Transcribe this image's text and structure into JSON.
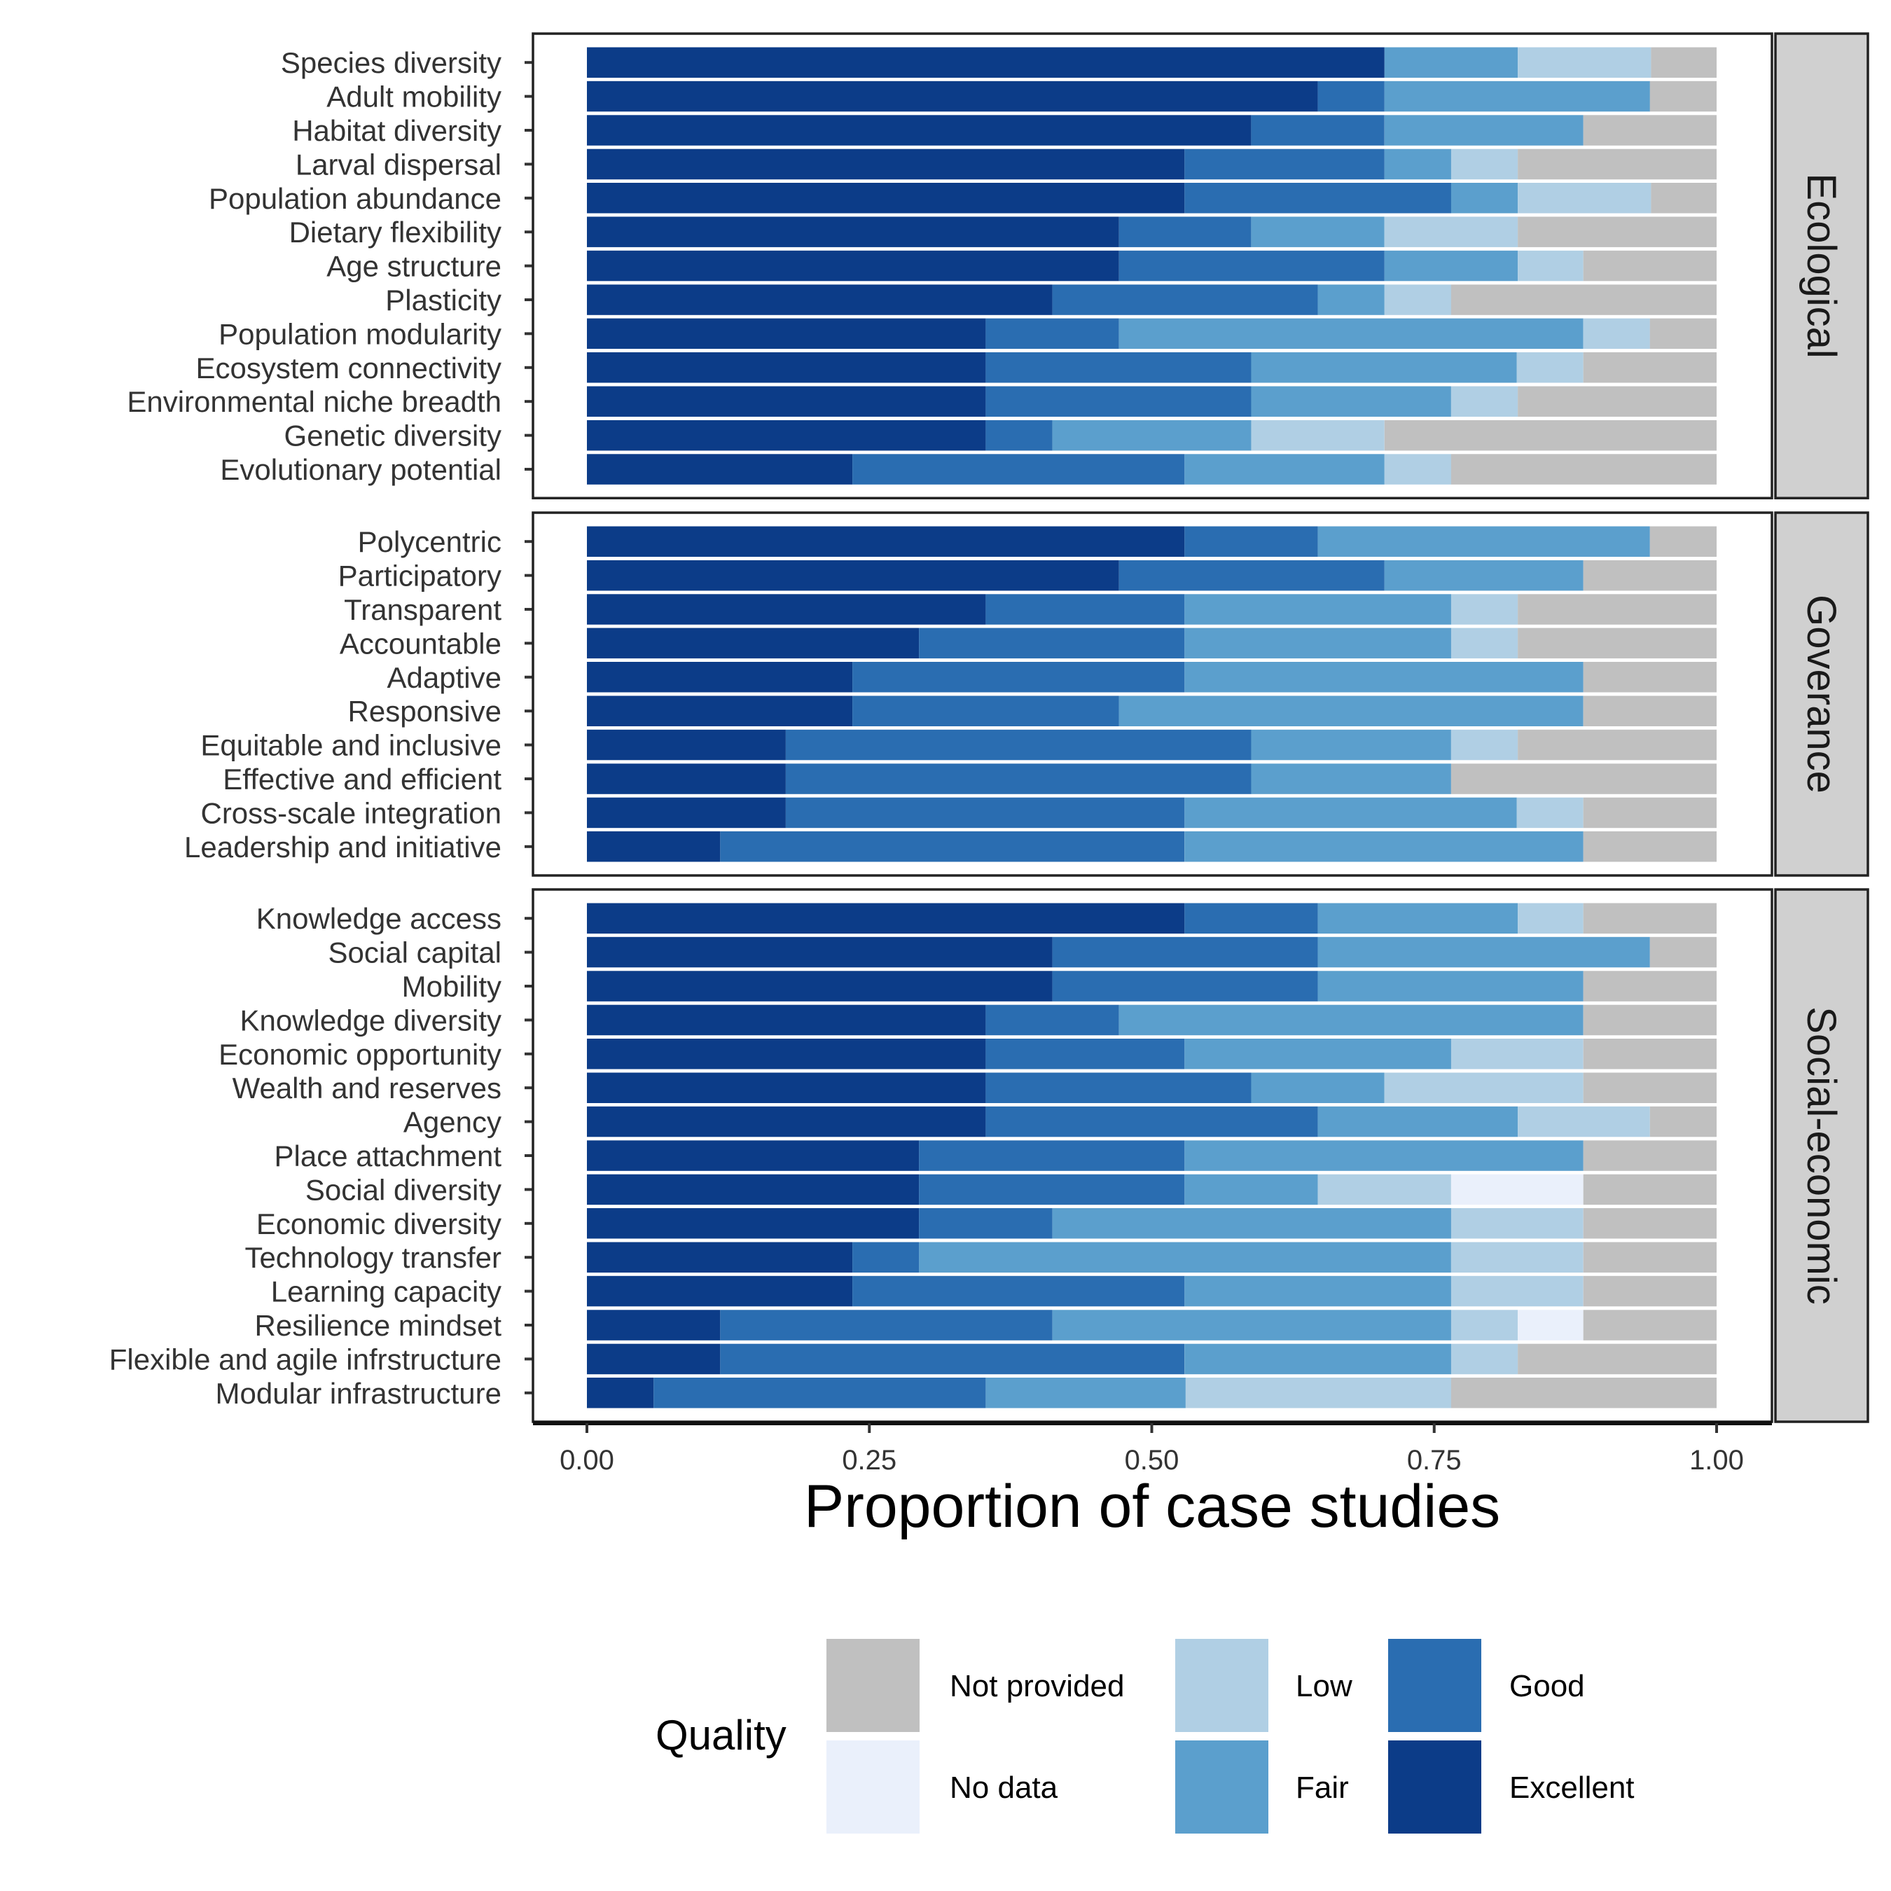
{
  "chart_data": {
    "type": "bar",
    "orientation": "horizontal",
    "stacked": true,
    "xlabel": "Proportion of case studies",
    "xlim": [
      0,
      1
    ],
    "xticks": [
      "0.00",
      "0.25",
      "0.50",
      "0.75",
      "1.00"
    ],
    "grid": false,
    "legend": {
      "title": "Quality",
      "position": "bottom",
      "items": [
        {
          "name": "Not provided",
          "color": "#c0c0c0"
        },
        {
          "name": "No data",
          "color": "#eaf0fb"
        },
        {
          "name": "Low",
          "color": "#b0cfe4"
        },
        {
          "name": "Fair",
          "color": "#5b9fcd"
        },
        {
          "name": "Good",
          "color": "#2a6db1"
        },
        {
          "name": "Excellent",
          "color": "#0c3c88"
        }
      ]
    },
    "series_order": [
      "Excellent",
      "Good",
      "Fair",
      "Low",
      "No data",
      "Not provided"
    ],
    "panels": [
      {
        "name": "Ecological",
        "categories": [
          {
            "label": "Species diversity",
            "values": [
              0.706,
              0,
              0.118,
              0.118,
              0,
              0.058
            ]
          },
          {
            "label": "Adult mobility",
            "values": [
              0.647,
              0.059,
              0.235,
              0,
              0,
              0.059
            ]
          },
          {
            "label": "Habitat diversity",
            "values": [
              0.588,
              0.118,
              0.176,
              0,
              0,
              0.118
            ]
          },
          {
            "label": "Larval dispersal",
            "values": [
              0.529,
              0.177,
              0.059,
              0.059,
              0,
              0.176
            ]
          },
          {
            "label": "Population abundance",
            "values": [
              0.529,
              0.236,
              0.059,
              0.118,
              0,
              0.058
            ]
          },
          {
            "label": "Dietary flexibility",
            "values": [
              0.471,
              0.117,
              0.118,
              0.118,
              0,
              0.176
            ]
          },
          {
            "label": "Age structure",
            "values": [
              0.471,
              0.235,
              0.118,
              0.058,
              0,
              0.118
            ]
          },
          {
            "label": "Plasticity",
            "values": [
              0.412,
              0.235,
              0.059,
              0.059,
              0,
              0.235
            ]
          },
          {
            "label": "Population modularity",
            "values": [
              0.353,
              0.118,
              0.411,
              0.059,
              0,
              0.059
            ]
          },
          {
            "label": "Ecosystem connectivity",
            "values": [
              0.353,
              0.235,
              0.235,
              0.059,
              0,
              0.118
            ]
          },
          {
            "label": "Environmental niche breadth",
            "values": [
              0.353,
              0.235,
              0.177,
              0.059,
              0,
              0.176
            ]
          },
          {
            "label": "Genetic diversity",
            "values": [
              0.353,
              0.059,
              0.176,
              0.118,
              0,
              0.294
            ]
          },
          {
            "label": "Evolutionary potential",
            "values": [
              0.235,
              0.294,
              0.177,
              0.059,
              0,
              0.235
            ]
          }
        ]
      },
      {
        "name": "Goverance",
        "categories": [
          {
            "label": "Polycentric",
            "values": [
              0.529,
              0.118,
              0.294,
              0,
              0,
              0.059
            ]
          },
          {
            "label": "Participatory",
            "values": [
              0.471,
              0.235,
              0.176,
              0,
              0,
              0.118
            ]
          },
          {
            "label": "Transparent",
            "values": [
              0.353,
              0.176,
              0.236,
              0.059,
              0,
              0.176
            ]
          },
          {
            "label": "Accountable",
            "values": [
              0.294,
              0.235,
              0.236,
              0.059,
              0,
              0.176
            ]
          },
          {
            "label": "Adaptive",
            "values": [
              0.235,
              0.294,
              0.353,
              0,
              0,
              0.118
            ]
          },
          {
            "label": "Responsive",
            "values": [
              0.235,
              0.236,
              0.411,
              0,
              0,
              0.118
            ]
          },
          {
            "label": "Equitable and inclusive",
            "values": [
              0.176,
              0.412,
              0.177,
              0.059,
              0,
              0.176
            ]
          },
          {
            "label": "Effective and efficient",
            "values": [
              0.176,
              0.412,
              0.177,
              0,
              0,
              0.235
            ]
          },
          {
            "label": "Cross-scale integration",
            "values": [
              0.176,
              0.353,
              0.294,
              0.059,
              0,
              0.118
            ]
          },
          {
            "label": "Leadership and initiative",
            "values": [
              0.118,
              0.411,
              0.353,
              0,
              0,
              0.118
            ]
          }
        ]
      },
      {
        "name": "Social-economic",
        "categories": [
          {
            "label": "Knowledge access",
            "values": [
              0.529,
              0.118,
              0.177,
              0.058,
              0,
              0.118
            ]
          },
          {
            "label": "Social capital",
            "values": [
              0.412,
              0.235,
              0.294,
              0,
              0,
              0.059
            ]
          },
          {
            "label": "Mobility",
            "values": [
              0.412,
              0.235,
              0.235,
              0,
              0,
              0.118
            ]
          },
          {
            "label": "Knowledge diversity",
            "values": [
              0.353,
              0.118,
              0.411,
              0,
              0,
              0.118
            ]
          },
          {
            "label": "Economic opportunity",
            "values": [
              0.353,
              0.176,
              0.236,
              0.117,
              0,
              0.118
            ]
          },
          {
            "label": "Wealth and reserves",
            "values": [
              0.353,
              0.235,
              0.118,
              0.176,
              0,
              0.118
            ]
          },
          {
            "label": "Agency",
            "values": [
              0.353,
              0.294,
              0.177,
              0.117,
              0,
              0.059
            ]
          },
          {
            "label": "Place attachment",
            "values": [
              0.294,
              0.235,
              0.353,
              0,
              0,
              0.118
            ]
          },
          {
            "label": "Social diversity",
            "values": [
              0.294,
              0.235,
              0.118,
              0.118,
              0.117,
              0.118
            ]
          },
          {
            "label": "Economic diversity",
            "values": [
              0.294,
              0.118,
              0.353,
              0.117,
              0,
              0.118
            ]
          },
          {
            "label": "Technology transfer",
            "values": [
              0.235,
              0.059,
              0.471,
              0.117,
              0,
              0.118
            ]
          },
          {
            "label": "Learning capacity",
            "values": [
              0.235,
              0.294,
              0.236,
              0.117,
              0,
              0.118
            ]
          },
          {
            "label": "Resilience mindset",
            "values": [
              0.118,
              0.294,
              0.353,
              0.059,
              0.058,
              0.118
            ]
          },
          {
            "label": "Flexible and agile infrstructure",
            "values": [
              0.118,
              0.411,
              0.236,
              0.059,
              0,
              0.176
            ]
          },
          {
            "label": "Modular infrastructure",
            "values": [
              0.059,
              0.294,
              0.177,
              0.235,
              0,
              0.235
            ]
          }
        ]
      }
    ]
  }
}
